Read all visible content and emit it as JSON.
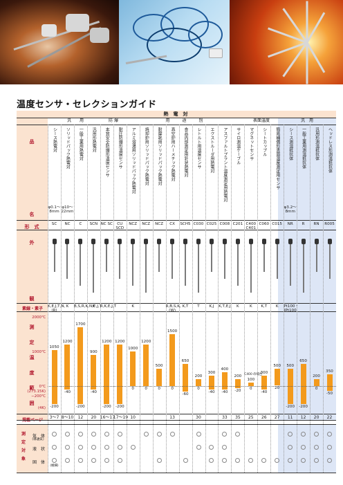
{
  "title": "温度センサ・セレクションガイド",
  "header": {
    "category": "熱　電　対",
    "category_right": "表面温度",
    "group_general": "汎　　用",
    "group_explosion": "防 爆",
    "group_purpose": "用　　　途　　　別",
    "group_general2": "汎　用"
  },
  "rows": {
    "hinmei": "品",
    "mei": "名",
    "keishiki": "形　式",
    "gaikan_top": "外",
    "gaikan_bottom": "観",
    "soshi": "素線・素子",
    "range_label": [
      "測",
      "定",
      "温",
      "度",
      "範",
      "囲"
    ],
    "page": "掲載ページ",
    "target": [
      "測",
      "定",
      "対",
      "象"
    ],
    "gas": "気　体",
    "gas_sub": "(導通気)",
    "liquid": "液　状",
    "solid": "固　体"
  },
  "axis": {
    "t2000": "2000℃",
    "t1000": "1000℃",
    "t0": "0℃",
    "t0k": "(273.15K)",
    "tm200": "−200℃",
    "t4k": "(4K)"
  },
  "columns": [
    {
      "name": "シース熱電対",
      "sub": "φ0.1〜8mm",
      "model": "SC",
      "elem": "K,E,J,T,N,(R)",
      "max": 1050,
      "min": -200,
      "page": "3〜7",
      "gas": true,
      "liq": true,
      "sol": true
    },
    {
      "name": "ソリッドパック熱電対",
      "sub": "φ10〜22mm",
      "model": "NC",
      "elem": "K",
      "max": 1200,
      "min": -40,
      "page": "8〜10",
      "gas": true,
      "liq": true,
      "sol": true
    },
    {
      "name": "一般工業用熱電対",
      "sub": "",
      "model": "C",
      "elem": "B,S,R,K,N,E,J,T",
      "max": 1700,
      "min": -200,
      "page": "12",
      "gas": true,
      "liq": true,
      "sol": true
    },
    {
      "name": "汎用形熱電対",
      "sub": "",
      "model": "SCN",
      "elem": "K",
      "max": 900,
      "min": -40,
      "page": "20",
      "gas": true,
      "liq": true,
      "sol": true
    },
    {
      "name": "本質安全防爆形温度センサ",
      "sub": "",
      "model": "NC SC",
      "elem": "R,K,E,J,T",
      "max": 1200,
      "min": -200,
      "page": "16〜17",
      "gas": true,
      "liq": true,
      "sol": true
    },
    {
      "name": "耐圧防爆形温度センサ",
      "sub": "",
      "model": "CU SCD",
      "elem": "",
      "max": 1200,
      "min": -200,
      "page": "17〜19",
      "gas": true,
      "liq": true,
      "sol": true
    },
    {
      "name": "アルミ溶湯用ソリッドパック熱電対",
      "sub": "",
      "model": "NCZ",
      "elem": "K",
      "max": 1000,
      "min": 0,
      "page": "10",
      "gas": false,
      "liq": true,
      "sol": false
    },
    {
      "name": "焼却炉用ソリッドパック熱電対",
      "sub": "",
      "model": "NCZ",
      "elem": "",
      "max": 1200,
      "min": 0,
      "page": "",
      "gas": true,
      "liq": false,
      "sol": false
    },
    {
      "name": "耐摩耗用ソリッドパック熱電対",
      "sub": "",
      "model": "NCZ",
      "elem": "",
      "max": 500,
      "min": 0,
      "page": "",
      "gas": true,
      "liq": false,
      "sol": true
    },
    {
      "name": "真空炉用ハーメチック熱電対",
      "sub": "",
      "model": "CX",
      "elem": "R,B,S,K,(W)",
      "max": 1500,
      "min": 0,
      "page": "13",
      "gas": true,
      "liq": false,
      "sol": false
    },
    {
      "name": "食品内部測定用針状熱電対",
      "sub": "",
      "model": "SCH5",
      "elem": "K,T",
      "max": 650,
      "min": -60,
      "page": "",
      "gas": false,
      "liq": false,
      "sol": true
    },
    {
      "name": "レトルト用温度センサ",
      "sub": "",
      "model": "C030",
      "elem": "T",
      "max": 200,
      "min": 0,
      "page": "30",
      "gas": true,
      "liq": true,
      "sol": false
    },
    {
      "name": "エクストルーダ用熱電対",
      "sub": "",
      "model": "C025",
      "elem": "K,J",
      "max": 300,
      "min": -40,
      "page": "",
      "gas": false,
      "liq": true,
      "sol": true
    },
    {
      "name": "アスファルトプラント温度測定用熱電対",
      "sub": "",
      "model": "C008",
      "elem": "K,T,E,J",
      "max": 400,
      "min": -40,
      "page": "33",
      "gas": true,
      "liq": true,
      "sol": true
    },
    {
      "name": "サイロ測温ケーブル",
      "sub": "",
      "model": "C201",
      "elem": "K",
      "max": 200,
      "min": -20,
      "page": "35",
      "gas": true,
      "liq": false,
      "sol": true
    },
    {
      "name": "マグネットセンサ",
      "sub": "",
      "model": "C400 C401",
      "elem": "K",
      "max": 100,
      "min": 0,
      "sub2": "C400 の場合",
      "page": "25",
      "gas": false,
      "liq": false,
      "sol": true
    },
    {
      "name": "シートカップル",
      "sub": "",
      "model": "C060",
      "elem": "K,T",
      "max": 300,
      "min": -40,
      "page": "26",
      "gas": false,
      "liq": false,
      "sol": true
    },
    {
      "name": "簡易補償形表面温度測定用センサ",
      "sub": "",
      "model": "C015",
      "elem": "K",
      "max": 500,
      "min": 20,
      "page": "27",
      "gas": false,
      "liq": false,
      "sol": true
    },
    {
      "name": "シース測温抵抗体",
      "sub": "φ3.2〜8mm",
      "model": "NR",
      "elem": "Pt100・JPt100",
      "max": 500,
      "min": -200,
      "page": "11",
      "gas": true,
      "liq": true,
      "sol": true
    },
    {
      "name": "一般工業用測温抵抗体",
      "sub": "",
      "model": "R",
      "elem": "",
      "max": 650,
      "min": -200,
      "page": "12",
      "gas": true,
      "liq": true,
      "sol": true
    },
    {
      "name": "汎用形測温抵抗体",
      "sub": "",
      "model": "RN",
      "elem": "",
      "max": 200,
      "min": 0,
      "page": "20",
      "gas": true,
      "liq": true,
      "sol": true
    },
    {
      "name": "ヘッドレス形測温抵抗体",
      "sub": "",
      "model": "R005",
      "elem": "",
      "max": 350,
      "min": -50,
      "page": "22",
      "gas": true,
      "liq": true,
      "sol": true
    }
  ],
  "colors": {
    "orange": "#f39a1c",
    "pink": "#fbe3d0",
    "blue": "#dde6f6",
    "red": "#b1172d"
  },
  "solid_note": "(極細)"
}
